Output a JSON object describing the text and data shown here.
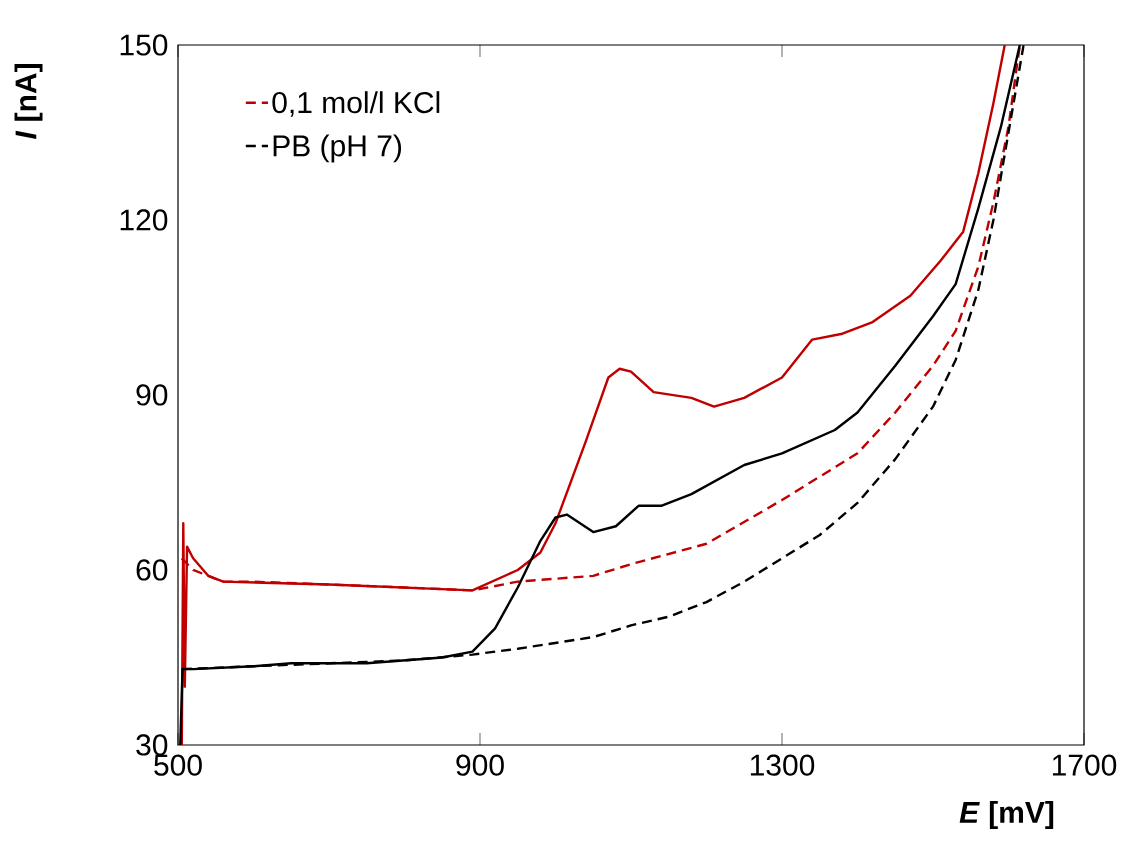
{
  "chart_data": {
    "type": "line",
    "xlabel": "*E* [mV]",
    "ylabel": "*I* [nA]",
    "xlim": [
      500,
      1700
    ],
    "xticks": [
      500,
      900,
      1300,
      1700
    ],
    "ylim": [
      30,
      150
    ],
    "yticks": [
      30,
      60,
      90,
      120,
      150
    ],
    "grid": false,
    "legend": "top left",
    "marker": "none",
    "series": [
      {
        "name": "0,1 mol/l KCl",
        "color": "#c00000",
        "line_style": "dashed",
        "x": [
          505,
          520,
          560,
          600,
          700,
          800,
          890,
          950,
          1050,
          1100,
          1200,
          1300,
          1400,
          1450,
          1500,
          1530,
          1560,
          1580,
          1600,
          1615
        ],
        "values": [
          62,
          60,
          58,
          58,
          57.5,
          57,
          56.5,
          58,
          59,
          61,
          64.5,
          72,
          80,
          87,
          95,
          101,
          112,
          123,
          136,
          150
        ]
      },
      {
        "color": "#c00000",
        "line_style": "solid",
        "x": [
          505,
          507,
          509,
          512,
          520,
          540,
          560,
          700,
          890,
          950,
          980,
          1000,
          1040,
          1070,
          1085,
          1100,
          1130,
          1180,
          1210,
          1250,
          1300,
          1340,
          1380,
          1420,
          1470,
          1510,
          1540,
          1560,
          1580,
          1595
        ],
        "values": [
          30,
          68,
          40,
          64,
          62,
          59,
          58,
          57.5,
          56.5,
          60,
          63,
          68,
          82,
          93,
          94.5,
          94,
          90.5,
          89.5,
          88,
          89.5,
          93,
          99.5,
          100.5,
          102.5,
          107,
          113,
          118,
          128,
          140,
          150
        ]
      },
      {
        "name": "PB (pH 7)",
        "color": "#000000",
        "line_style": "dashed",
        "x": [
          505,
          600,
          700,
          800,
          890,
          950,
          1000,
          1050,
          1100,
          1150,
          1200,
          1250,
          1300,
          1350,
          1400,
          1450,
          1500,
          1530,
          1560,
          1580,
          1600,
          1620
        ],
        "values": [
          43,
          43.5,
          44,
          44.5,
          45.5,
          46.5,
          47.5,
          48.5,
          50.5,
          52,
          54.5,
          58,
          62,
          66,
          71.5,
          79,
          88,
          96,
          108,
          120,
          135,
          150
        ]
      },
      {
        "color": "#000000",
        "line_style": "solid",
        "x": [
          503,
          506,
          510,
          520,
          600,
          650,
          750,
          850,
          890,
          920,
          950,
          980,
          1000,
          1015,
          1050,
          1080,
          1110,
          1140,
          1180,
          1250,
          1300,
          1370,
          1400,
          1450,
          1500,
          1530,
          1560,
          1590,
          1615
        ],
        "values": [
          30,
          43,
          43,
          43,
          43.5,
          44,
          44,
          45,
          46,
          50,
          57,
          65,
          69,
          69.5,
          66.5,
          67.5,
          71,
          71,
          73,
          78,
          80,
          84,
          87,
          95,
          103.5,
          109,
          122,
          136,
          150
        ]
      }
    ]
  }
}
